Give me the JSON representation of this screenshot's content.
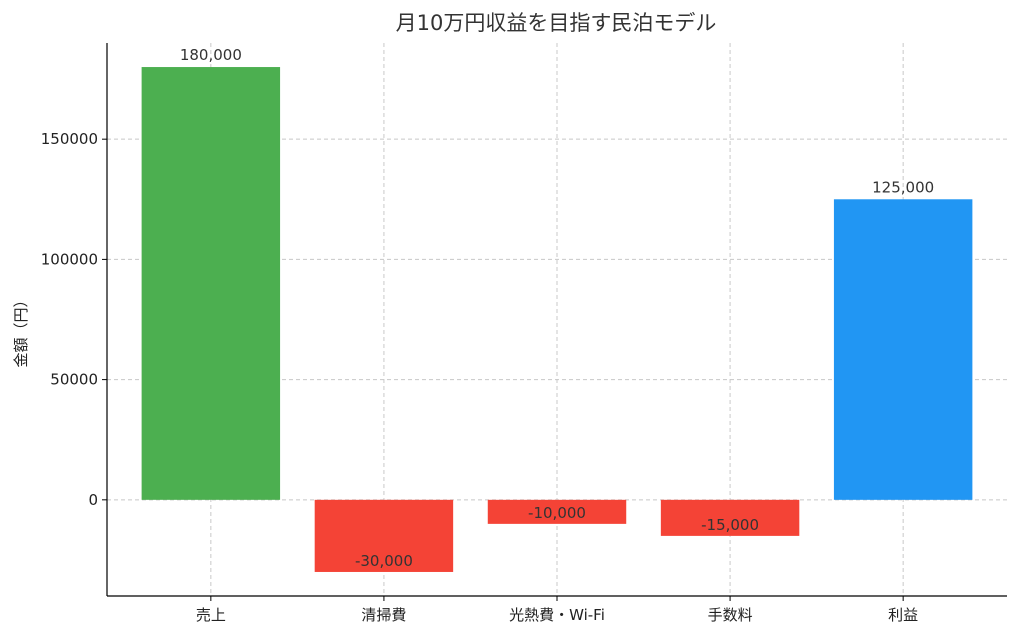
{
  "chart_data": {
    "type": "bar",
    "title": "月10万円収益を目指す民泊モデル",
    "xlabel": "",
    "ylabel": "金額（円）",
    "categories": [
      "売上",
      "清掃費",
      "光熱費・Wi-Fi",
      "手数料",
      "利益"
    ],
    "values": [
      180000,
      -30000,
      -10000,
      -15000,
      125000
    ],
    "data_labels": [
      "180,000",
      "-30,000",
      "-10,000",
      "-15,000",
      "125,000"
    ],
    "colors": [
      "#4CAF50",
      "#F44336",
      "#F44336",
      "#F44336",
      "#2196F3"
    ],
    "ylim": [
      -40000,
      190000
    ],
    "yticks": [
      0,
      50000,
      100000,
      150000
    ],
    "ytick_labels": [
      "0",
      "50000",
      "100000",
      "150000"
    ],
    "grid": true,
    "legend": "none"
  }
}
